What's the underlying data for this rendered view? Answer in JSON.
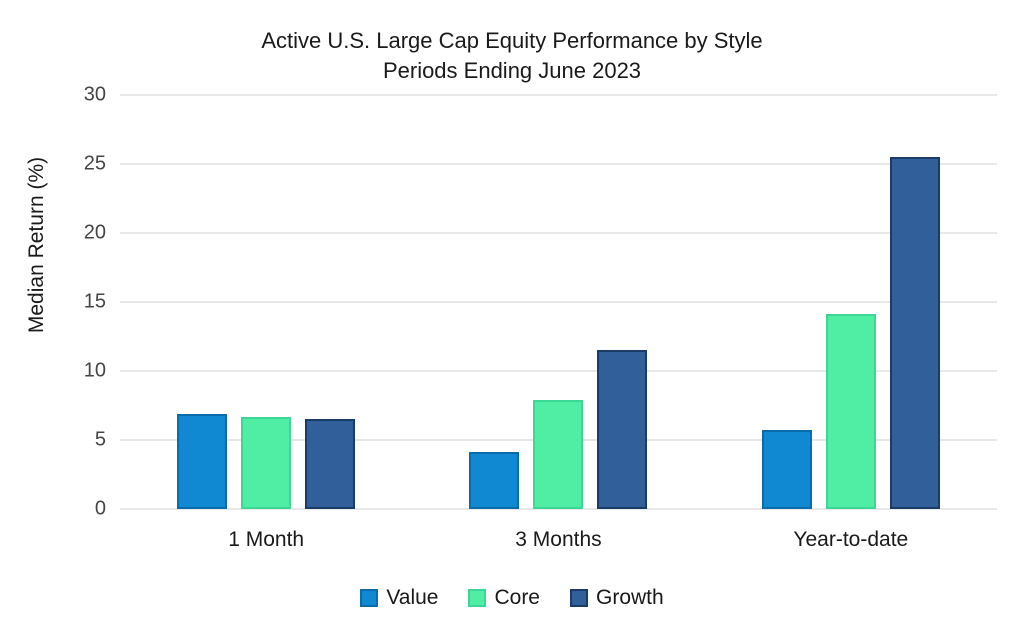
{
  "chart_data": {
    "type": "bar",
    "title": "Active U.S. Large Cap Equity Performance by Style",
    "subtitle": "Periods Ending June 2023",
    "ylabel": "Median Return (%)",
    "categories": [
      "1 Month",
      "3 Months",
      "Year-to-date"
    ],
    "series": [
      {
        "name": "Value",
        "color": "#1089d2",
        "border_color": "#0b6cab",
        "values": [
          6.9,
          4.1,
          5.7
        ]
      },
      {
        "name": "Core",
        "color": "#50eda4",
        "border_color": "#3cd794",
        "values": [
          6.7,
          7.9,
          14.1
        ]
      },
      {
        "name": "Growth",
        "color": "#315f9a",
        "border_color": "#1b3c69",
        "values": [
          6.5,
          11.5,
          25.5
        ]
      }
    ],
    "ylim": [
      0,
      30
    ],
    "ytick_step": 5,
    "ytick_labels": [
      "0",
      "5",
      "10",
      "15",
      "20",
      "25",
      "30"
    ],
    "grid": "horizontal",
    "gridline_color": "#d0d0d0",
    "legend_position": "bottom",
    "background_color": "#ffffff"
  }
}
